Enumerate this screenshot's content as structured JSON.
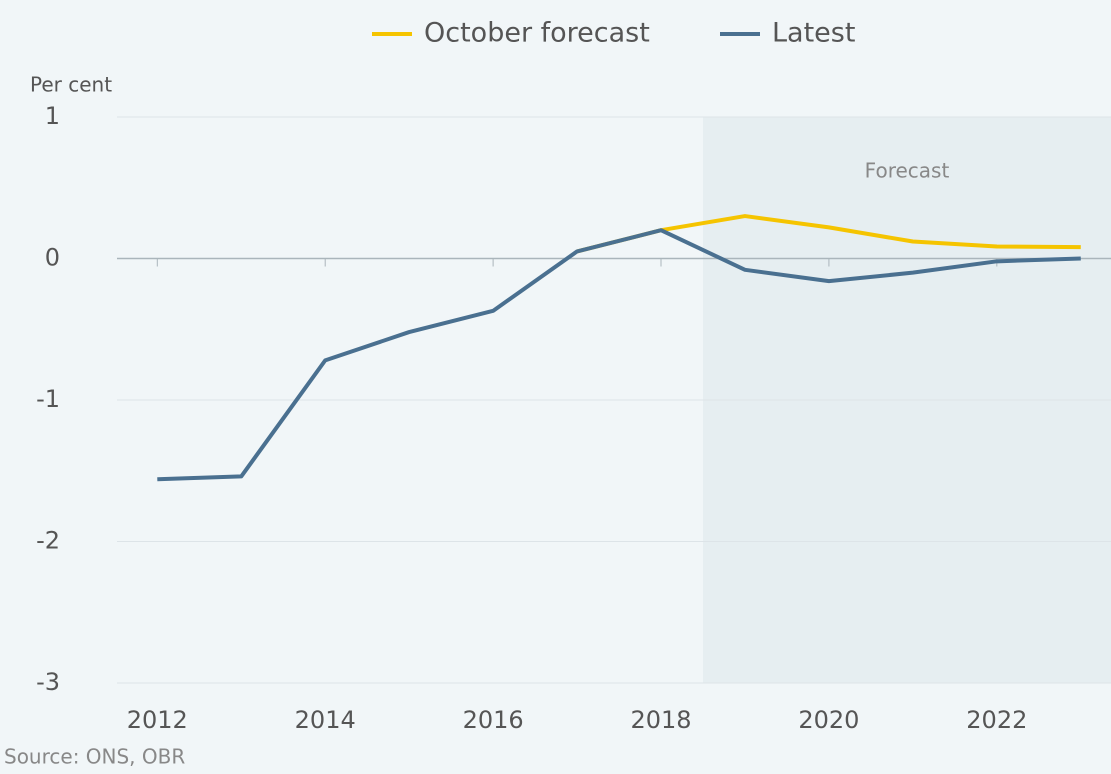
{
  "chart_data": {
    "type": "line",
    "y_axis_label": "Per cent",
    "source": "Source: ONS, OBR",
    "annotation": "Forecast",
    "forecast_start": 2018.5,
    "x": [
      2012,
      2013,
      2014,
      2015,
      2016,
      2017,
      2018,
      2019,
      2020,
      2021,
      2022,
      2023
    ],
    "series": [
      {
        "name": "October forecast",
        "color": "#f5c400",
        "values": [
          null,
          null,
          null,
          null,
          null,
          0.05,
          0.2,
          0.3,
          0.22,
          0.12,
          0.085,
          0.08
        ]
      },
      {
        "name": "Latest",
        "color": "#4a7090",
        "values": [
          -1.56,
          -1.54,
          -0.72,
          -0.52,
          -0.37,
          0.05,
          0.2,
          -0.08,
          -0.16,
          -0.1,
          -0.02,
          0.0
        ]
      }
    ],
    "xlim": [
      2011.52,
      2023.36
    ],
    "xticks": [
      2012,
      2014,
      2016,
      2018,
      2020,
      2022
    ],
    "ylim": [
      -3,
      1
    ],
    "yticks": [
      -3,
      -2,
      -1,
      0,
      1
    ],
    "grid": true,
    "legend": "top"
  }
}
